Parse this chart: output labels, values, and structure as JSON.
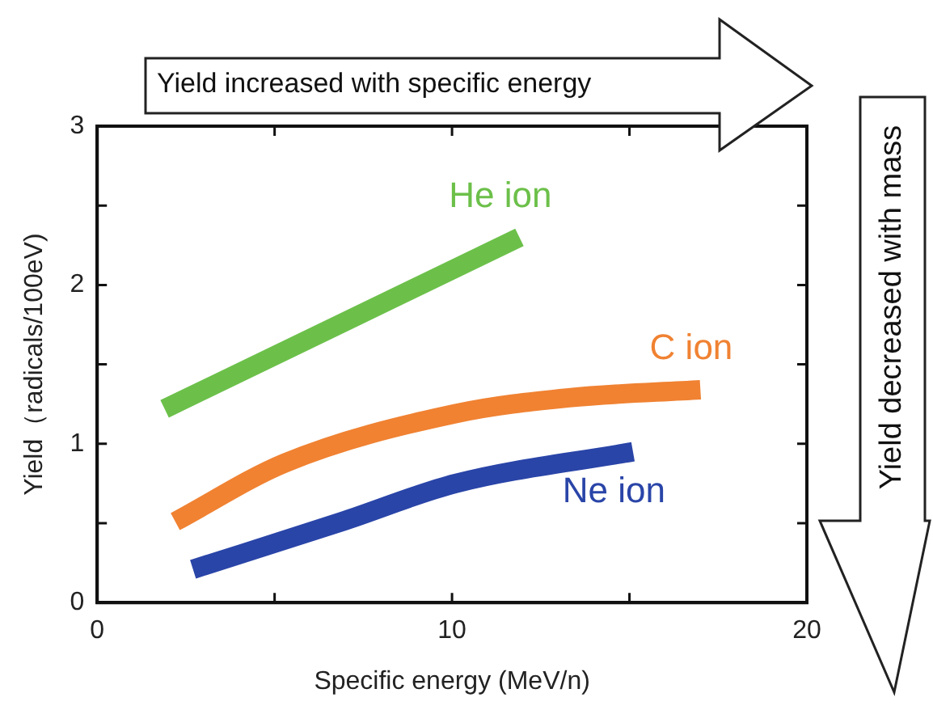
{
  "chart_data": {
    "type": "line",
    "xlabel": "Specific energy (MeV/n)",
    "ylabel": "Yield（radicals/100eV)",
    "xlim": [
      0,
      20
    ],
    "xticks": [
      0,
      {
        "value": 5,
        "label": null
      },
      10,
      {
        "value": 15,
        "label": null
      },
      20
    ],
    "ylim": [
      0,
      3
    ],
    "yticks": [
      0,
      {
        "value": 0.5,
        "label": null
      },
      1,
      {
        "value": 1.5,
        "label": null
      },
      2,
      {
        "value": 2.5,
        "label": null
      },
      3
    ],
    "grid": false,
    "legend": false,
    "marker": "none",
    "line_style": "solid",
    "series": [
      {
        "name": "He ion",
        "color": "#6cc04a",
        "x": [
          1.9,
          11.9
        ],
        "values": [
          1.22,
          2.3
        ]
      },
      {
        "name": "C ion",
        "color": "#f08232",
        "x": [
          2.2,
          5.3,
          10.1,
          13.3,
          17.0
        ],
        "values": [
          0.51,
          0.88,
          1.19,
          1.29,
          1.34
        ]
      },
      {
        "name": "Ne ion",
        "color": "#2a45a8",
        "x": [
          2.7,
          6.9,
          10.1,
          15.1
        ],
        "values": [
          0.21,
          0.51,
          0.75,
          0.95
        ]
      }
    ],
    "annotations": [
      "Yield increased with specific energy",
      "Yield decreased with mass"
    ]
  }
}
